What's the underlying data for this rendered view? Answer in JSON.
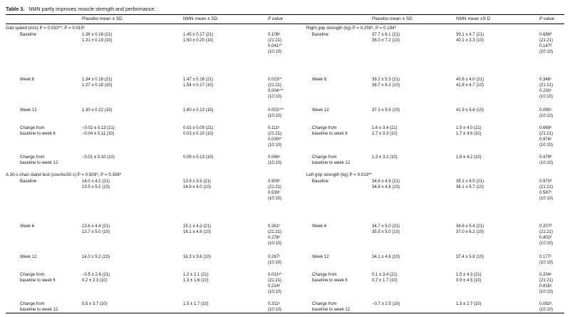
{
  "table": {
    "label": "Table 3.",
    "caption": "NMN partly improves muscle strength and performance."
  },
  "headers": {
    "left_placebo": "Placebo mean ± SD",
    "left_nmn": "NMN mean ± SD",
    "left_p": "P value",
    "right_placebo": "Placebo mean ± SD",
    "right_nmn": "NMN mean ±S D",
    "right_p": "P value"
  },
  "sections": {
    "gait": "Gait speed (m/s) P = 0.033**, P = 0.015*",
    "chair": "A 30-s chair-stand test (counts/30 s) P = 0.509*, P = 0.309*",
    "right_grip": "Right grip strength (kg) P = 0.259*, P = 0.194*",
    "left_grip": "Left grip strength (kg) P = 0.019**"
  },
  "gait_rows": [
    {
      "label": [
        "Baseline"
      ],
      "placebo": [
        "1.36 ± 0.16 (21)",
        "1.31 ± 0.19 (10)"
      ],
      "nmn": [
        "1.45 ± 0.17 (21)",
        "1.50 ± 0.20 (10)"
      ],
      "p": [
        "0.106ᶜ",
        "(21:21)",
        "0.041ᶜ*",
        "(10:10)"
      ]
    },
    {
      "label": [
        "Week 6"
      ],
      "placebo": [
        "1.34 ± 0.18 (21)",
        "1.27 ± 0.18 (10)"
      ],
      "nmn": [
        "1.47 ± 0.16 (21)",
        "1.54 ± 0.17 (10)"
      ],
      "p": [
        "0.023ᶜ*",
        "(21:21)",
        "0.004ᶜ**",
        "(10:10)"
      ]
    },
    {
      "label": [
        "Week 12"
      ],
      "placebo": [
        "1.30 ± 0.22 (10)"
      ],
      "nmn": [
        "1.60 ± 0.13 (10)"
      ],
      "p": [
        "0.002ᶜ**",
        "(10:10)"
      ]
    },
    {
      "label": [
        "Change from",
        "baseline to week 6"
      ],
      "placebo": [
        "−0.02 ± 0.13 (21)",
        "−0.04 ± 0.11 (10)"
      ],
      "nmn": [
        "0.02 ± 0.09 (21)",
        "0.03 ± 0.10 (10)"
      ],
      "p": [
        "0.111ᵉ",
        "(21:21)",
        "0.030ᵉ*",
        "(10:10)"
      ]
    },
    {
      "label": [
        "Change from",
        "baseline to week 12"
      ],
      "placebo": [
        "−0.01 ± 0.10 (10)"
      ],
      "nmn": [
        "0.09 ± 0.13 (10)"
      ],
      "p": [
        "0.066ᶜ",
        "(10:10)"
      ]
    }
  ],
  "chair_rows": [
    {
      "label": [
        "Baseline"
      ],
      "placebo": [
        "14.0 ± 4.2 (21)",
        "13.5 ± 5.2 (10)"
      ],
      "nmn": [
        "13.9 ± 3.9 (21)",
        "14.8 ± 4.0 (10)"
      ],
      "p": [
        "0.909ᶜ",
        "(21:21)",
        "0.539ᶜ",
        "(10:10)"
      ]
    },
    {
      "label": [
        "Week 6"
      ],
      "placebo": [
        "13.6 ± 4.4 (21)",
        "13.7 ± 5.0 (10)"
      ],
      "nmn": [
        "15.1 ± 4.2 (21)",
        "16.1 ± 4.6 (10)"
      ],
      "p": [
        "0.261ᶜ",
        "(21:21)",
        "0.278ᶜ",
        "(10:10)"
      ]
    },
    {
      "label": [
        "Week 12"
      ],
      "placebo": [
        "14.0 ± 5.2 (10)"
      ],
      "nmn": [
        "16.3 ± 3.6 (10)"
      ],
      "p": [
        "0.267ᶜ",
        "(10:10)"
      ]
    },
    {
      "label": [
        "Change from",
        "baseline to week 6"
      ],
      "placebo": [
        "−0.5 ± 2.6 (21)",
        "0.2 ± 2.3 (10)"
      ],
      "nmn": [
        "1.2 ± 2.1 (21)",
        "1.3 ± 1.6 (10)"
      ],
      "p": [
        "0.031ᵉ*",
        "(21:21)",
        "0.214ᵉ",
        "(10:10)"
      ]
    },
    {
      "label": [
        "Change from",
        "baseline to week 12"
      ],
      "placebo": [
        "0.5 ± 3.7 (10)"
      ],
      "nmn": [
        "1.5 ± 1.7 (10)"
      ],
      "p": [
        "0.311ᵉ",
        "(10:10)"
      ]
    }
  ],
  "right_grip_rows": [
    {
      "label": [
        "Baseline"
      ],
      "placebo": [
        "37.7 ± 6.1 (21)",
        "36.0 ± 7.2 (10)"
      ],
      "nmn": [
        "39.1 ± 4.7 (21)",
        "40.1 ± 3.3 (10)"
      ],
      "p": [
        "0.686ᵈ",
        "(21:21)",
        "0.147ᵈ",
        "(10:10)"
      ]
    },
    {
      "label": [
        "Week 6"
      ],
      "placebo": [
        "39.2 ± 5.3 (21)",
        "38.7 ± 6.3 (10)"
      ],
      "nmn": [
        "40.6 ± 4.0 (21)",
        "41.8 ± 4.7 (10)"
      ],
      "p": [
        "0.348ᶜ",
        "(21:21)",
        "0.230ᶜ",
        "(10:10)"
      ]
    },
    {
      "label": [
        "Week 12"
      ],
      "placebo": [
        "37.3 ± 5.9 (10)"
      ],
      "nmn": [
        "41.9 ± 5.6 (10)"
      ],
      "p": [
        "0.090ᶜ.",
        "(10:10)"
      ]
    },
    {
      "label": [
        "Change from",
        "baseline to week 6"
      ],
      "placebo": [
        "1.6 ± 3.4 (21)",
        "2.7 ± 3.3 (10)"
      ],
      "nmn": [
        "1.5 ± 4.0 (21)",
        "1.7 ± 4.6 (10)"
      ],
      "p": [
        "0.669ᵉ",
        "(21:21)",
        "0.974ᵉ",
        "(10:10)"
      ]
    },
    {
      "label": [
        "Change from",
        "baseline to week 12"
      ],
      "placebo": [
        "1.3 ± 3.2 (10)"
      ],
      "nmn": [
        "1.8 ± 4.2 (10)"
      ],
      "p": [
        "0.479ᵉ",
        "(10:10)"
      ]
    }
  ],
  "left_grip_rows": [
    {
      "label": [
        "Baseline"
      ],
      "placebo": [
        "34.6 ± 4.9 (21)",
        "34.8 ± 4.8 (10)"
      ],
      "nmn": [
        "35.1 ± 4.5 (21)",
        "36.1 ± 5.7 (10)"
      ],
      "p": [
        "0.970ᵈ",
        "(21:21)",
        "0.587ᶜ",
        "(10:10)"
      ]
    },
    {
      "label": [
        "Week 6"
      ],
      "placebo": [
        "34.7 ± 5.0 (21)",
        "35.5 ± 5.0 (10)"
      ],
      "nmn": [
        "36.6 ± 5.4 (21)",
        "37.0 ± 6.2 (10)"
      ],
      "p": [
        "0.207ᵈ",
        "(21:21)",
        "0.402ᵈ",
        "(10:10)"
      ]
    },
    {
      "label": [
        "Week 12"
      ],
      "placebo": [
        "34.1 ± 4.6 (10)"
      ],
      "nmn": [
        "37.4 ± 5.8 (10)"
      ],
      "p": [
        "0.177ᶜ",
        "(10:10)"
      ]
    },
    {
      "label": [
        "Change from",
        "baseline to week 6"
      ],
      "placebo": [
        "0.1 ± 3.4 (21)",
        "0.7 ± 1.7 (10)"
      ],
      "nmn": [
        "1.5 ± 4.3 (21)",
        "0.9 ± 4.5 (10)"
      ],
      "p": [
        "0.204ᵉ",
        "(21:21)",
        "0.815ᵉ",
        "(10:10)"
      ]
    },
    {
      "label": [
        "Change from",
        "baseline to week 12"
      ],
      "placebo": [
        "−0.7 ± 2.5 (10)"
      ],
      "nmn": [
        "1.3 ± 2.7 (10)"
      ],
      "p": [
        "0.082ᵉ.",
        "(10:10)"
      ]
    }
  ]
}
